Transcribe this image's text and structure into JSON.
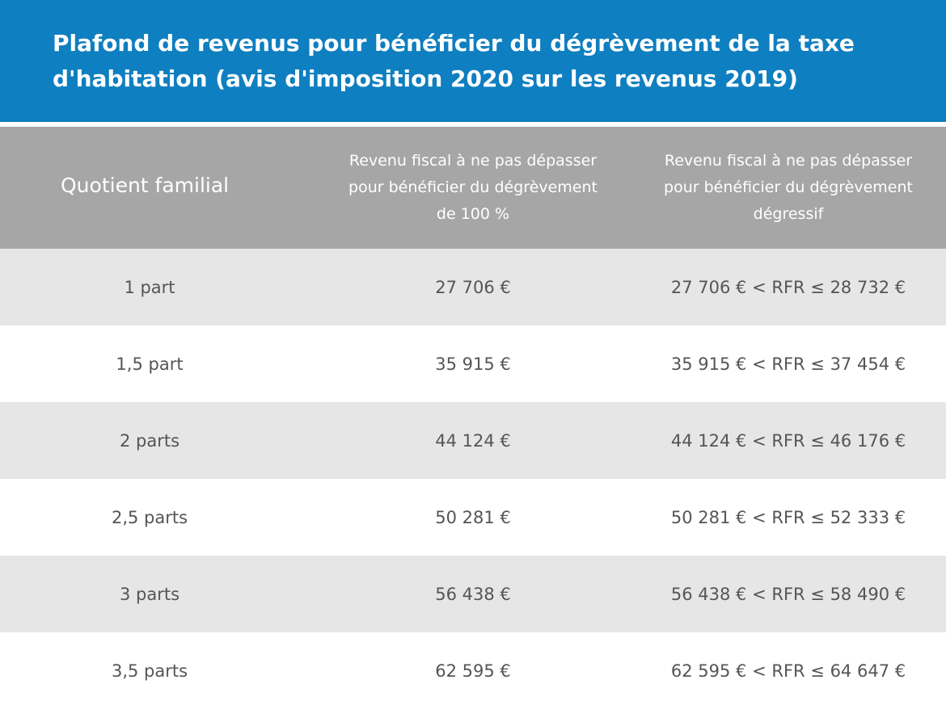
{
  "header": {
    "title": "Plafond de revenus pour bénéficier du dégrèvement de la taxe d'habitation (avis d'imposition 2020 sur les revenus 2019)"
  },
  "table": {
    "columns": [
      "Quotient familial",
      "Revenu fiscal à ne pas dépasser pour bénéficier du dégrèvement de 100 %",
      "Revenu fiscal à ne pas dépasser pour bénéficier du dégrèvement dégressif"
    ],
    "rows": [
      [
        "1 part",
        "27 706 €",
        "27 706 € < RFR ≤ 28 732 €"
      ],
      [
        "1,5 part",
        "35 915 €",
        "35 915 € < RFR ≤ 37 454 €"
      ],
      [
        "2 parts",
        "44 124 €",
        "44 124 € < RFR ≤ 46 176 €"
      ],
      [
        "2,5 parts",
        "50 281 €",
        "50 281 € < RFR ≤ 52 333 €"
      ],
      [
        "3 parts",
        "56 438 €",
        "56 438 € < RFR ≤ 58 490 €"
      ],
      [
        "3,5 parts",
        "62 595 €",
        "62 595 € < RFR ≤ 64 647 €"
      ]
    ]
  }
}
